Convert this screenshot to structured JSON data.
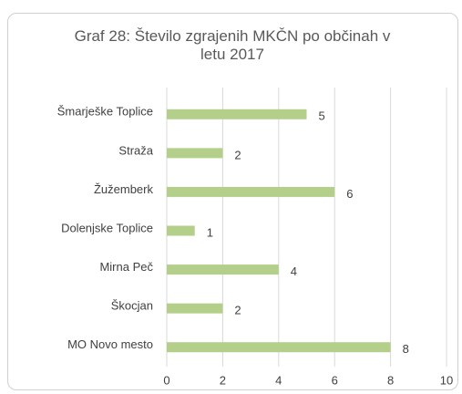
{
  "chart_data": {
    "type": "barh",
    "title": "Graf 28: Število zgrajenih MKČN po občinah v letu 2017",
    "categories": [
      "Šmarješke Toplice",
      "Straža",
      "Žužemberk",
      "Dolenjske Toplice",
      "Mirna Peč",
      "Škocjan",
      "MO Novo mesto"
    ],
    "values": [
      5,
      2,
      6,
      1,
      4,
      2,
      8
    ],
    "color": "#b3cf8a",
    "xlim": [
      0,
      10
    ],
    "xticks": [
      0,
      2,
      4,
      6,
      8,
      10
    ],
    "grid": true
  }
}
